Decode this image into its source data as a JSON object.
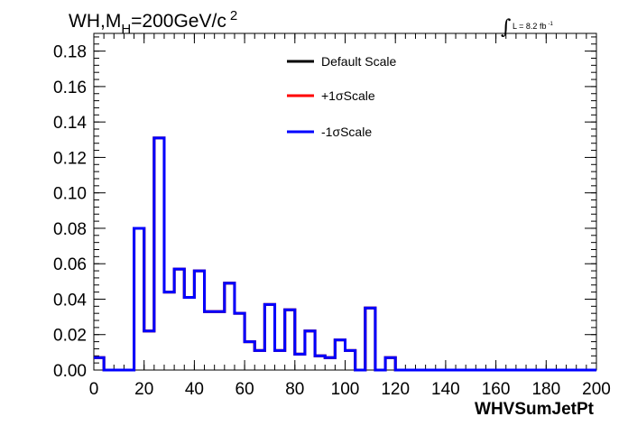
{
  "chart_data": {
    "type": "line",
    "title_base": "WH,M",
    "title_sub": "H",
    "title_rest": "=200GeV/c",
    "title_sup": "2",
    "lumi_text": "L = 8.2 fb",
    "lumi_sup": "-1",
    "integral_symbol": "∫",
    "xlabel": "WHVSumJetPt",
    "ylabel": "",
    "xlim": [
      0,
      200
    ],
    "ylim": [
      0,
      0.19
    ],
    "x_ticks": [
      "0",
      "20",
      "40",
      "60",
      "80",
      "100",
      "120",
      "140",
      "160",
      "180",
      "200"
    ],
    "y_ticks": [
      "0.00",
      "0.02",
      "0.04",
      "0.06",
      "0.08",
      "0.10",
      "0.12",
      "0.14",
      "0.16",
      "0.18"
    ],
    "bin_edges": [
      0,
      4,
      8,
      12,
      16,
      20,
      24,
      28,
      32,
      36,
      40,
      44,
      48,
      52,
      56,
      60,
      64,
      68,
      72,
      76,
      80,
      84,
      88,
      92,
      96,
      100,
      104,
      108,
      112,
      116,
      120,
      124,
      128,
      132,
      136,
      140,
      144,
      148,
      152,
      156,
      160,
      164,
      168,
      172,
      176,
      180,
      184,
      188,
      192,
      196,
      200
    ],
    "series": [
      {
        "name": "Default Scale",
        "color": "#000000",
        "values": [
          0.007,
          0,
          0,
          0,
          0.08,
          0.022,
          0.131,
          0.044,
          0.057,
          0.041,
          0.056,
          0.033,
          0.033,
          0.049,
          0.032,
          0.016,
          0.011,
          0.037,
          0.011,
          0.034,
          0.009,
          0.022,
          0.008,
          0.007,
          0.017,
          0.011,
          0,
          0.035,
          0,
          0.007,
          0,
          0,
          0,
          0,
          0,
          0,
          0,
          0,
          0,
          0,
          0,
          0,
          0,
          0,
          0,
          0,
          0,
          0,
          0,
          0
        ]
      },
      {
        "name": "+1σScale",
        "color": "#ff0000",
        "values": [
          0.007,
          0,
          0,
          0,
          0.08,
          0.022,
          0.131,
          0.044,
          0.057,
          0.041,
          0.056,
          0.033,
          0.033,
          0.049,
          0.032,
          0.016,
          0.011,
          0.037,
          0.011,
          0.034,
          0.009,
          0.022,
          0.008,
          0.007,
          0.017,
          0.011,
          0,
          0.035,
          0,
          0.007,
          0,
          0,
          0,
          0,
          0,
          0,
          0,
          0,
          0,
          0,
          0,
          0,
          0,
          0,
          0,
          0,
          0,
          0,
          0,
          0
        ]
      },
      {
        "name": "-1σScale",
        "color": "#0000ff",
        "values": [
          0.007,
          0,
          0,
          0,
          0.08,
          0.022,
          0.131,
          0.044,
          0.057,
          0.041,
          0.056,
          0.033,
          0.033,
          0.049,
          0.032,
          0.016,
          0.011,
          0.037,
          0.011,
          0.034,
          0.009,
          0.022,
          0.008,
          0.007,
          0.017,
          0.011,
          0,
          0.035,
          0,
          0.007,
          0,
          0,
          0,
          0,
          0,
          0,
          0,
          0,
          0,
          0,
          0,
          0,
          0,
          0,
          0,
          0,
          0,
          0,
          0,
          0
        ]
      }
    ],
    "legend_position": "top-center",
    "grid": false
  }
}
